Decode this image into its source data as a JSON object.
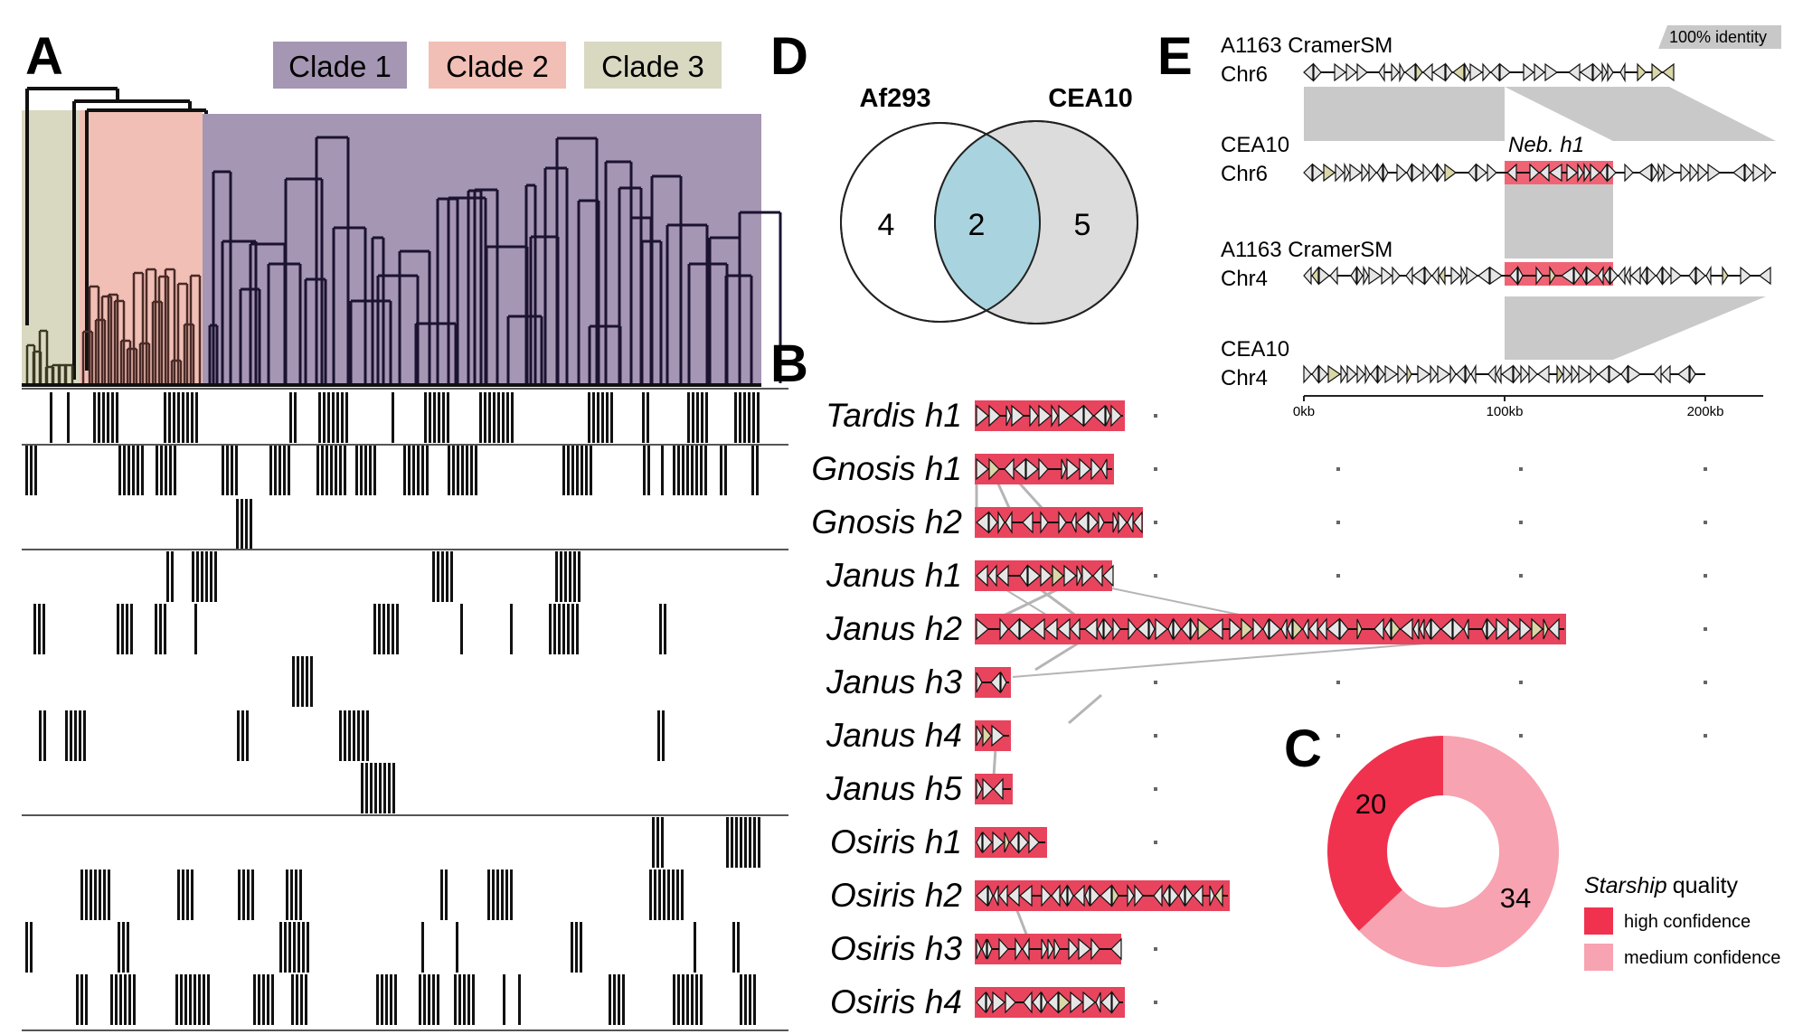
{
  "panels": {
    "A": {
      "letter": "A",
      "clades": [
        {
          "label": "Clade 1",
          "color": "#a596b3"
        },
        {
          "label": "Clade 2",
          "color": "#f1bfb5"
        },
        {
          "label": "Clade 3",
          "color": "#d9d8c1"
        }
      ]
    },
    "B": {
      "letter": "B",
      "haplotypes": [
        "Tardis h1",
        "Gnosis h1",
        "Gnosis h2",
        "Janus h1",
        "Janus h2",
        "Janus h3",
        "Janus h4",
        "Janus h5",
        "Osiris h1",
        "Osiris h2",
        "Osiris h3",
        "Osiris h4"
      ],
      "region_color": "#e8445d"
    },
    "C": {
      "letter": "C",
      "high_confidence": 20,
      "medium_confidence": 34,
      "legend_title_italic": "Starship",
      "legend_title_rest": "quality",
      "legend_high": "high confidence",
      "legend_medium": "medium confidence",
      "color_high": "#f0324f",
      "color_medium": "#f7a3b1"
    },
    "D": {
      "letter": "D",
      "left_label": "Af293",
      "right_label": "CEA10",
      "left_only": "4",
      "shared": "2",
      "right_only": "5",
      "shared_color": "#a9d4df",
      "right_color": "#dcdcdc"
    },
    "E": {
      "letter": "E",
      "identity_badge": "100% identity",
      "tracks": [
        {
          "strain": "A1163 CramerSM",
          "chrom": "Chr6"
        },
        {
          "strain": "CEA10",
          "chrom": "Chr6"
        },
        {
          "strain": "A1163 CramerSM",
          "chrom": "Chr4"
        },
        {
          "strain": "CEA10",
          "chrom": "Chr4"
        }
      ],
      "element_label": "Neb. h1",
      "axis_ticks": [
        "0kb",
        "100kb",
        "200kb"
      ]
    }
  }
}
